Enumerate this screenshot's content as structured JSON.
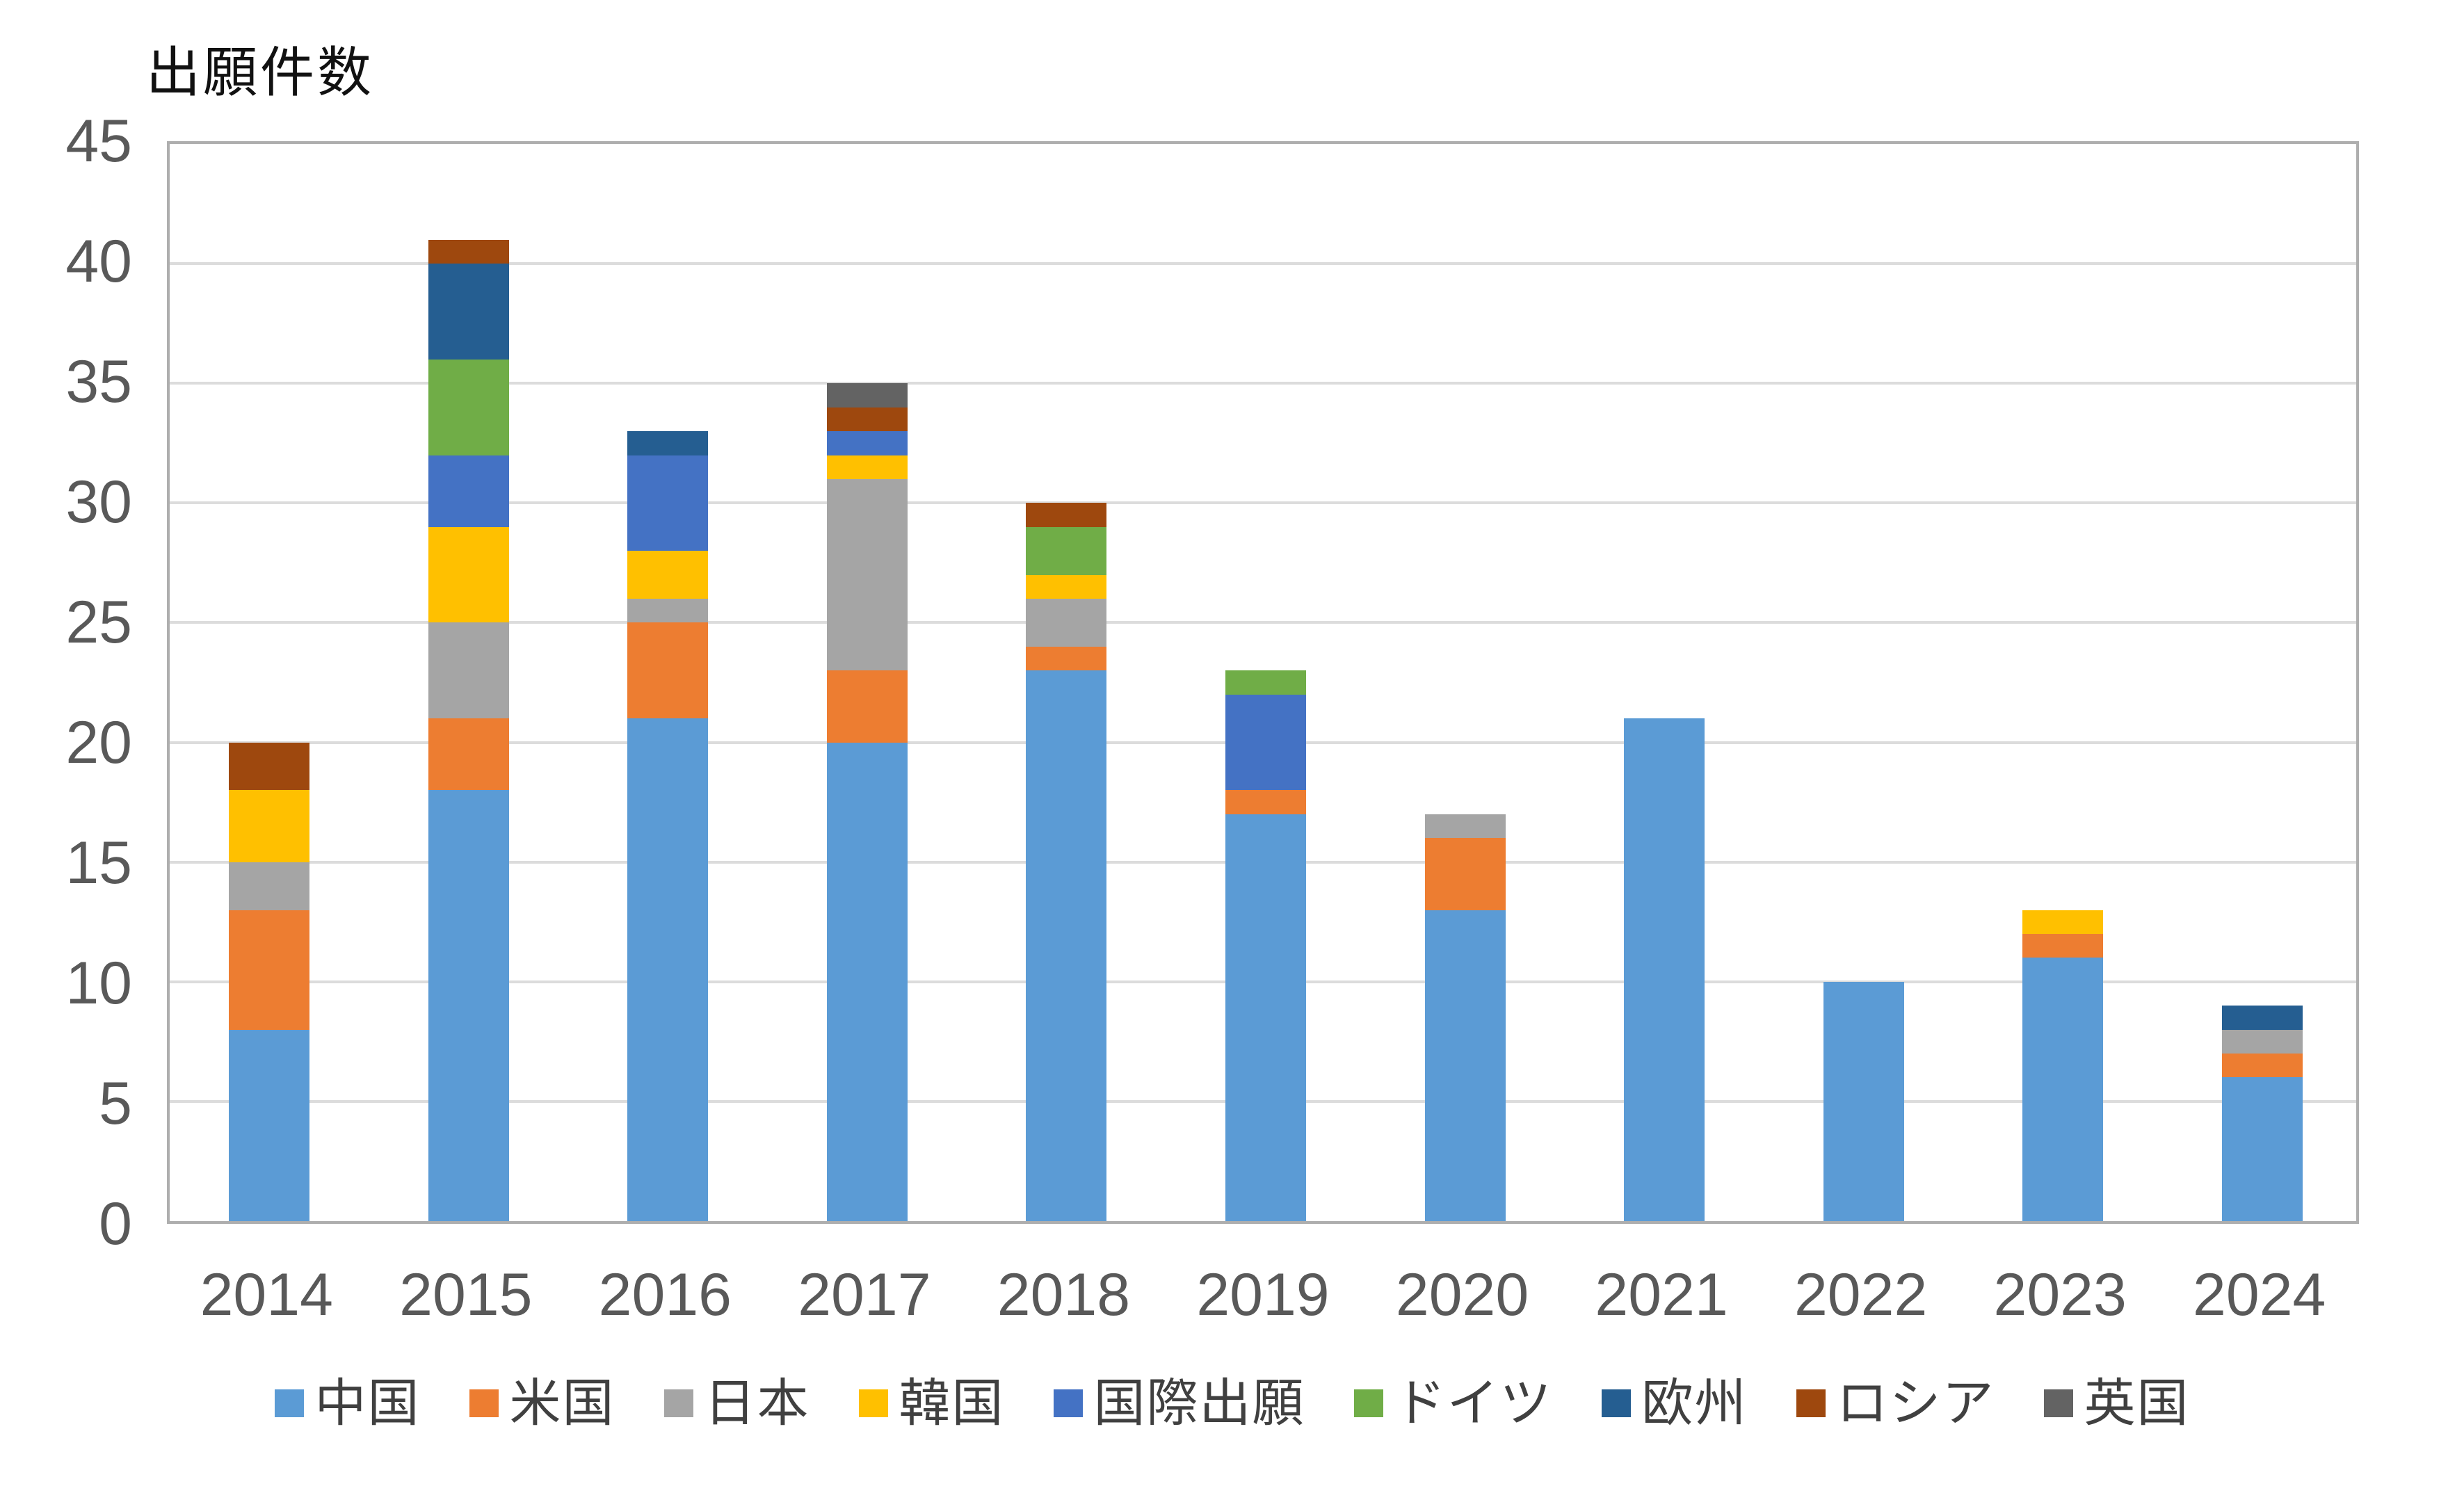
{
  "title": "出願件数",
  "chart_data": {
    "type": "bar",
    "stacked": true,
    "title": "出願件数",
    "xlabel": "",
    "ylabel": "出願件数",
    "ylim": [
      0,
      45
    ],
    "yticks": [
      0,
      5,
      10,
      15,
      20,
      25,
      30,
      35,
      40,
      45
    ],
    "grid": true,
    "legend_position": "bottom",
    "categories": [
      "2014",
      "2015",
      "2016",
      "2017",
      "2018",
      "2019",
      "2020",
      "2021",
      "2022",
      "2023",
      "2024"
    ],
    "series": [
      {
        "name": "中国",
        "color": "#5B9BD5",
        "values": [
          8,
          18,
          21,
          20,
          23,
          17,
          13,
          21,
          10,
          11,
          6
        ]
      },
      {
        "name": "米国",
        "color": "#ED7D31",
        "values": [
          5,
          3,
          4,
          3,
          1,
          1,
          3,
          0,
          0,
          1,
          1
        ]
      },
      {
        "name": "日本",
        "color": "#A5A5A5",
        "values": [
          2,
          4,
          1,
          8,
          2,
          0,
          1,
          0,
          0,
          0,
          1
        ]
      },
      {
        "name": "韓国",
        "color": "#FFC000",
        "values": [
          3,
          4,
          2,
          1,
          1,
          0,
          0,
          0,
          0,
          1,
          0
        ]
      },
      {
        "name": "国際出願",
        "color": "#4472C4",
        "values": [
          0,
          3,
          4,
          1,
          0,
          4,
          0,
          0,
          0,
          0,
          0
        ]
      },
      {
        "name": "ドイツ",
        "color": "#70AD47",
        "values": [
          0,
          4,
          0,
          0,
          2,
          1,
          0,
          0,
          0,
          0,
          0
        ]
      },
      {
        "name": "欧州",
        "color": "#255E91",
        "values": [
          0,
          4,
          1,
          0,
          0,
          0,
          0,
          0,
          0,
          0,
          1
        ]
      },
      {
        "name": "ロシア",
        "color": "#9E480E",
        "values": [
          2,
          1,
          0,
          1,
          1,
          0,
          0,
          0,
          0,
          0,
          0
        ]
      },
      {
        "name": "英国",
        "color": "#636363",
        "values": [
          0,
          0,
          0,
          1,
          0,
          0,
          0,
          0,
          0,
          0,
          0
        ]
      }
    ],
    "totals": [
      20,
      41,
      33,
      35,
      30,
      23,
      17,
      21,
      10,
      13,
      9
    ],
    "colors": {
      "gridline": "#DCDCDC",
      "plot_border": "#AEAEAE",
      "axis_label": "#595959",
      "legend_text": "#404040",
      "title_text": "#111111"
    }
  }
}
